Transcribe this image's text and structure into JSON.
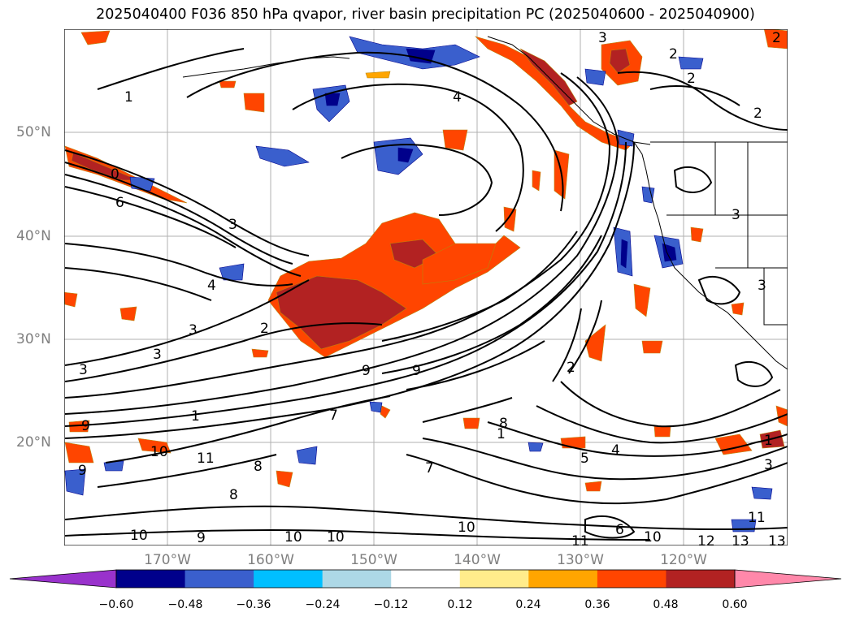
{
  "title": "2025040400 F036 850 hPa qvapor, river basin precipitation PC (2025040600 - 2025040900)",
  "latitude_labels": [
    "50°N",
    "40°N",
    "30°N",
    "20°N"
  ],
  "longitude_labels": [
    "170°W",
    "160°W",
    "150°W",
    "140°W",
    "130°W",
    "120°W"
  ],
  "contour_labels": [
    "1",
    "4",
    "2",
    "2",
    "2",
    "3",
    "2",
    "0",
    "6",
    "3",
    "4",
    "3",
    "2",
    "3",
    "3",
    "9",
    "9",
    "1",
    "9",
    "10",
    "11",
    "9",
    "8",
    "8",
    "9",
    "10",
    "10",
    "10",
    "10",
    "11",
    "12",
    "13",
    "13",
    "11",
    "6",
    "10",
    "7",
    "8",
    "1",
    "7",
    "5",
    "4",
    "3",
    "1",
    "3",
    "2",
    "3"
  ],
  "colorbar": {
    "ticks": [
      "−0.60",
      "−0.48",
      "−0.36",
      "−0.24",
      "−0.12",
      "0.12",
      "0.24",
      "0.36",
      "0.48",
      "0.60"
    ],
    "colors": {
      "under": "#9932cc",
      "bins": [
        "#00008b",
        "#3a5fcd",
        "#00bfff",
        "#add8e6",
        "#ffffff",
        "#ffec8b",
        "#ffa500",
        "#ff4500",
        "#b22222"
      ],
      "over": "#ff88aa"
    }
  }
}
